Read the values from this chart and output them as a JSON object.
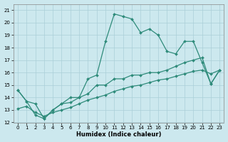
{
  "x": [
    0,
    1,
    2,
    3,
    4,
    5,
    6,
    7,
    8,
    9,
    10,
    11,
    12,
    13,
    14,
    15,
    16,
    17,
    18,
    19,
    20,
    21,
    22,
    23
  ],
  "line1": [
    14.6,
    13.7,
    13.5,
    12.3,
    13.0,
    13.5,
    14.0,
    14.0,
    15.5,
    15.8,
    18.5,
    20.7,
    20.5,
    20.3,
    19.2,
    19.5,
    19.0,
    17.7,
    17.5,
    18.5,
    18.5,
    16.8,
    15.1,
    16.2
  ],
  "line2": [
    14.6,
    13.7,
    12.6,
    12.3,
    13.0,
    13.5,
    13.6,
    14.0,
    14.3,
    15.0,
    15.0,
    15.5,
    15.5,
    15.8,
    15.8,
    16.0,
    16.0,
    16.2,
    16.5,
    16.8,
    17.0,
    17.2,
    15.1,
    16.2
  ],
  "line3": [
    13.1,
    13.3,
    12.8,
    12.5,
    12.8,
    13.0,
    13.2,
    13.5,
    13.8,
    14.0,
    14.2,
    14.5,
    14.7,
    14.9,
    15.0,
    15.2,
    15.4,
    15.5,
    15.7,
    15.9,
    16.1,
    16.2,
    15.9,
    16.2
  ],
  "color": "#2e8b7a",
  "bg_color": "#cce8ee",
  "grid_color": "#aacfd8",
  "xlabel": "Humidex (Indice chaleur)",
  "ylim": [
    12,
    21.5
  ],
  "xlim": [
    -0.5,
    23.5
  ],
  "yticks": [
    12,
    13,
    14,
    15,
    16,
    17,
    18,
    19,
    20,
    21
  ],
  "xticks": [
    0,
    1,
    2,
    3,
    4,
    5,
    6,
    7,
    8,
    9,
    10,
    11,
    12,
    13,
    14,
    15,
    16,
    17,
    18,
    19,
    20,
    21,
    22,
    23
  ]
}
